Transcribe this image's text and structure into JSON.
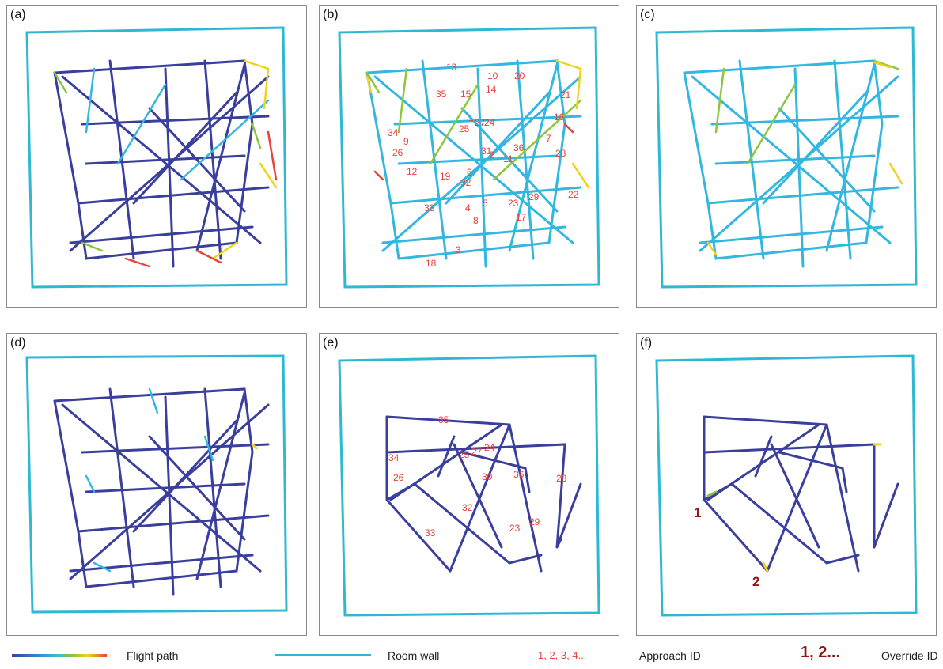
{
  "colors": {
    "wall": "#2fb8d4",
    "path_dark": "#3a3f9e",
    "path_cyan": "#33b7e0",
    "path_green": "#8cc63f",
    "path_yellow": "#f2d21b",
    "path_red": "#e8423a",
    "approach_id": "#e8423a",
    "override_id": "#8b1a12"
  },
  "panels": [
    {
      "label": "(a)"
    },
    {
      "label": "(b)"
    },
    {
      "label": "(c)"
    },
    {
      "label": "(d)"
    },
    {
      "label": "(e)"
    },
    {
      "label": "(f)"
    }
  ],
  "approach_ids_b": [
    "13",
    "10",
    "20",
    "35",
    "15",
    "14",
    "21",
    "1",
    "27",
    "24",
    "16",
    "25",
    "34",
    "9",
    "7",
    "31",
    "2",
    "36",
    "26",
    "11",
    "28",
    "12",
    "19",
    "6",
    "32",
    "23",
    "29",
    "22",
    "33",
    "4",
    "5",
    "17",
    "8",
    "3",
    "18"
  ],
  "approach_ids_e": [
    "35",
    "34",
    "25",
    "27",
    "24",
    "26",
    "30",
    "36",
    "28",
    "32",
    "29",
    "23",
    "33"
  ],
  "override_ids_f": [
    "1",
    "2"
  ],
  "legend": {
    "flight_path": "Flight path",
    "room_wall": "Room wall",
    "approach_sample": "1, 2, 3, 4...",
    "approach_label": "Approach ID",
    "override_sample": "1, 2...",
    "override_label": "Override ID"
  }
}
